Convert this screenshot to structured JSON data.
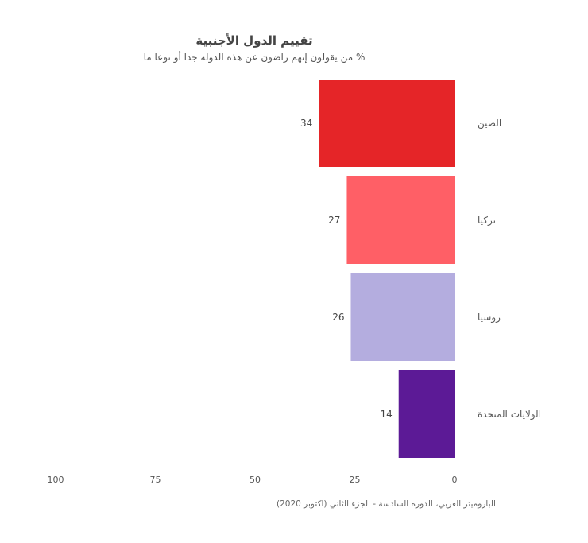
{
  "chart_data": {
    "type": "bar",
    "orientation": "horizontal",
    "axis_direction": "reversed",
    "title": "تقييم الدول الأجنبية",
    "subtitle": "% من يقولون إنهم راضون عن هذه الدولة جدا أو نوعا ما",
    "categories": [
      "الصين",
      "تركيا",
      "روسيا",
      "الولايات المتحدة"
    ],
    "values": [
      34,
      27,
      26,
      14
    ],
    "colors": [
      "#e52528",
      "#ff5f66",
      "#b4addf",
      "#5c1a96"
    ],
    "xlim": [
      0,
      100
    ],
    "ticks": [
      100,
      75,
      50,
      25,
      0
    ],
    "grid": false,
    "source": "الباروميتر العربي، الدورة السادسة - الجزء الثاني (اكتوبر 2020)"
  }
}
